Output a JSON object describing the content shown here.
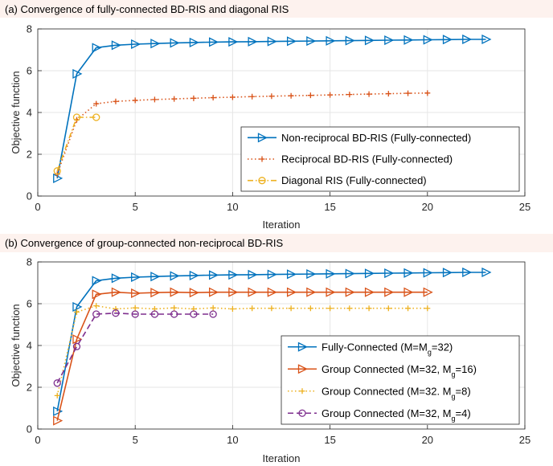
{
  "chart_data": [
    {
      "type": "line",
      "title": "(a) Convergence of fully-connected BD-RIS and diagonal RIS",
      "xlabel": "Iteration",
      "ylabel": "Objective function",
      "xlim": [
        0,
        25
      ],
      "ylim": [
        0,
        8
      ],
      "xticks": [
        "0",
        "5",
        "10",
        "15",
        "20",
        "25"
      ],
      "yticks": [
        "0",
        "2",
        "4",
        "6",
        "8"
      ],
      "grid": true,
      "legend_position": "lower-right",
      "series": [
        {
          "name": "Non-reciprocal BD-RIS (Fully-connected)",
          "color": "#0072bd",
          "line": "solid",
          "marker": "triangle-right",
          "x": [
            1,
            2,
            3,
            4,
            5,
            6,
            7,
            8,
            9,
            10,
            11,
            12,
            13,
            14,
            15,
            16,
            17,
            18,
            19,
            20,
            21,
            22,
            23
          ],
          "values": [
            0.85,
            5.85,
            7.1,
            7.22,
            7.27,
            7.3,
            7.33,
            7.35,
            7.37,
            7.38,
            7.39,
            7.4,
            7.41,
            7.42,
            7.43,
            7.44,
            7.45,
            7.46,
            7.47,
            7.48,
            7.49,
            7.5,
            7.5
          ]
        },
        {
          "name": "Reciprocal BD-RIS (Fully-connected)",
          "color": "#d95319",
          "line": "dotted",
          "marker": "plus",
          "x": [
            1,
            2,
            3,
            4,
            5,
            6,
            7,
            8,
            9,
            10,
            11,
            12,
            13,
            14,
            15,
            16,
            17,
            18,
            19,
            20
          ],
          "values": [
            1.05,
            3.65,
            4.42,
            4.53,
            4.58,
            4.62,
            4.65,
            4.68,
            4.71,
            4.73,
            4.76,
            4.78,
            4.8,
            4.82,
            4.84,
            4.86,
            4.88,
            4.9,
            4.92,
            4.93
          ]
        },
        {
          "name": "Diagonal RIS (Fully-connected)",
          "color": "#edb120",
          "line": "dashdot",
          "marker": "circle",
          "x": [
            1,
            2,
            3
          ],
          "values": [
            1.2,
            3.77,
            3.77
          ]
        }
      ]
    },
    {
      "type": "line",
      "title": "(b) Convergence of group-connected non-reciprocal BD-RIS",
      "xlabel": "Iteration",
      "ylabel": "Objective function",
      "xlim": [
        0,
        25
      ],
      "ylim": [
        0,
        8
      ],
      "xticks": [
        "0",
        "5",
        "10",
        "15",
        "20",
        "25"
      ],
      "yticks": [
        "0",
        "2",
        "4",
        "6",
        "8"
      ],
      "grid": true,
      "legend_position": "lower-right",
      "series": [
        {
          "name": "Fully-Connected (M=M",
          "name_sub": "g",
          "name_tail": "=32)",
          "color": "#0072bd",
          "line": "solid",
          "marker": "triangle-right",
          "x": [
            1,
            2,
            3,
            4,
            5,
            6,
            7,
            8,
            9,
            10,
            11,
            12,
            13,
            14,
            15,
            16,
            17,
            18,
            19,
            20,
            21,
            22,
            23
          ],
          "values": [
            0.85,
            5.85,
            7.1,
            7.22,
            7.27,
            7.3,
            7.33,
            7.35,
            7.37,
            7.38,
            7.39,
            7.4,
            7.41,
            7.42,
            7.43,
            7.44,
            7.45,
            7.46,
            7.47,
            7.48,
            7.49,
            7.5,
            7.5
          ]
        },
        {
          "name": "Group Connected (M=32, M",
          "name_sub": "g",
          "name_tail": "=16)",
          "color": "#d95319",
          "line": "solid",
          "marker": "triangle-right",
          "x": [
            1,
            2,
            3,
            4,
            5,
            6,
            7,
            8,
            9,
            10,
            11,
            12,
            13,
            14,
            15,
            16,
            17,
            18,
            19,
            20
          ],
          "values": [
            0.4,
            4.3,
            6.45,
            6.55,
            6.5,
            6.53,
            6.55,
            6.53,
            6.55,
            6.55,
            6.55,
            6.55,
            6.55,
            6.55,
            6.55,
            6.55,
            6.55,
            6.55,
            6.55,
            6.55
          ]
        },
        {
          "name": "Group Connected (M=32. M",
          "name_sub": "g",
          "name_tail": "=8)",
          "color": "#edb120",
          "line": "dotted",
          "marker": "plus",
          "x": [
            1,
            2,
            3,
            4,
            5,
            6,
            7,
            8,
            9,
            10,
            11,
            12,
            13,
            14,
            15,
            16,
            17,
            18,
            19,
            20
          ],
          "values": [
            1.6,
            5.6,
            5.9,
            5.75,
            5.8,
            5.75,
            5.8,
            5.75,
            5.8,
            5.75,
            5.78,
            5.78,
            5.78,
            5.78,
            5.78,
            5.78,
            5.78,
            5.78,
            5.78,
            5.78
          ]
        },
        {
          "name": "Group Connected (M=32, M",
          "name_sub": "g",
          "name_tail": "=4)",
          "color": "#7e2f8e",
          "line": "dashed",
          "marker": "circle",
          "x": [
            1,
            2,
            3,
            4,
            5,
            6,
            7,
            8,
            9
          ],
          "values": [
            2.2,
            3.95,
            5.5,
            5.55,
            5.5,
            5.5,
            5.5,
            5.5,
            5.5
          ]
        }
      ]
    }
  ]
}
